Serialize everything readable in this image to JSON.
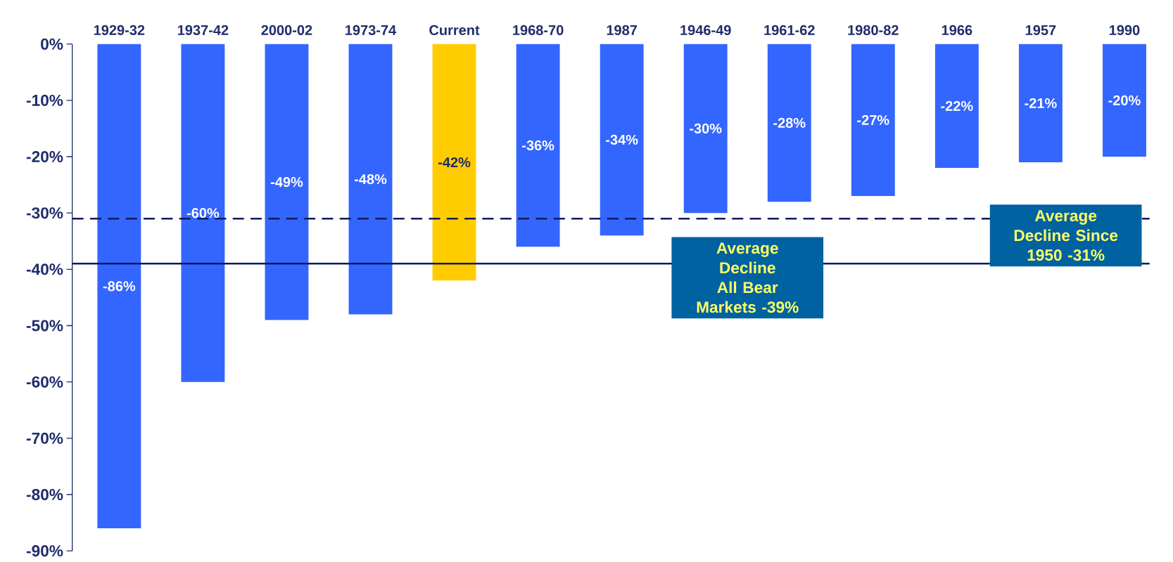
{
  "chart_data": {
    "type": "bar",
    "categories": [
      "1929-32",
      "1937-42",
      "2000-02",
      "1973-74",
      "Current",
      "1968-70",
      "1987",
      "1946-49",
      "1961-62",
      "1980-82",
      "1966",
      "1957",
      "1990"
    ],
    "values": [
      -86,
      -60,
      -49,
      -48,
      -42,
      -36,
      -34,
      -30,
      -28,
      -27,
      -22,
      -21,
      -20
    ],
    "colors": [
      "#3366ff",
      "#3366ff",
      "#3366ff",
      "#3366ff",
      "#ffcc00",
      "#3366ff",
      "#3366ff",
      "#3366ff",
      "#3366ff",
      "#3366ff",
      "#3366ff",
      "#3366ff",
      "#3366ff"
    ],
    "value_labels": [
      "-86%",
      "-60%",
      "-49%",
      "-48%",
      "-42%",
      "-36%",
      "-34%",
      "-30%",
      "-28%",
      "-27%",
      "-22%",
      "-21%",
      "-20%"
    ],
    "ylim": [
      -90,
      0
    ],
    "yticks": [
      {
        "value": 0,
        "label": "0%"
      },
      {
        "value": -10,
        "label": "-10%"
      },
      {
        "value": -20,
        "label": "-20%"
      },
      {
        "value": -30,
        "label": "-30%"
      },
      {
        "value": -40,
        "label": "-40%"
      },
      {
        "value": -50,
        "label": "-50%"
      },
      {
        "value": -60,
        "label": "-60%"
      },
      {
        "value": -70,
        "label": "-70%"
      },
      {
        "value": -80,
        "label": "-80%"
      },
      {
        "value": -90,
        "label": "-90%"
      }
    ],
    "ref_lines": [
      {
        "axis": "y",
        "value": -39,
        "label": "Average Decline All Bear Markets -39%",
        "color": "#0d1a5c",
        "line_style": "solid"
      },
      {
        "axis": "y",
        "value": -31,
        "label": "Average Decline Since 1950 -31%",
        "color": "#0d1a5c",
        "line_style": "dashed"
      }
    ],
    "grid": false
  }
}
